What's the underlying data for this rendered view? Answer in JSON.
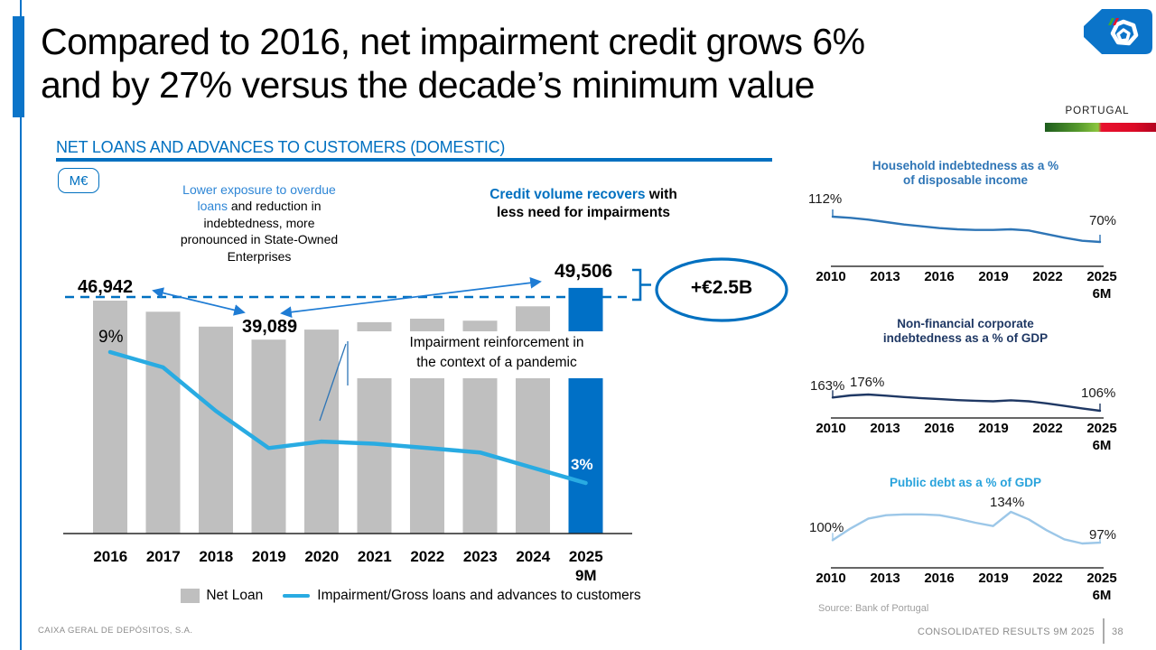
{
  "slide": {
    "title_line1": "Compared to 2016, net impairment credit grows 6%",
    "title_line2": "and by 27% versus the decade’s minimum value",
    "portugal_label": "PORTUGAL",
    "footer_left": "CAIXA GERAL DE DEPÓSITOS, S.A.",
    "footer_right": "CONSOLIDATED RESULTS 9M 2025",
    "page_number": "38",
    "source_note": "Source: Bank of Portugal"
  },
  "main_chart": {
    "header": "NET LOANS AND ADVANCES TO CUSTOMERS (DOMESTIC)",
    "unit_badge": "M€",
    "callout_left_highlight": "Lower exposure to overdue loans",
    "callout_left_rest": " and reduction in indebtedness, more pronounced in State-Owned Enterprises",
    "callout_right_highlight": "Credit volume recovers",
    "callout_right_rest": " with less need for impairments",
    "pandemic_line1": "Impairment reinforcement in",
    "pandemic_line2": "the context of a pandemic",
    "delta_badge": "+€2.5B",
    "value_2016": "46,942",
    "value_2019": "39,089",
    "value_2025": "49,506",
    "line_start": "9%",
    "line_end": "3%",
    "legend_bar": "Net Loan",
    "legend_line": "Impairment/Gross loans and advances to customers"
  },
  "right_panel": {
    "t1_line1": "Household indebtedness as a %",
    "t1_line2": "of disposable income",
    "t2_line1": "Non-financial corporate",
    "t2_line2": "indebtedness as a % of GDP",
    "t3_line1": "Public debt as a % of GDP"
  },
  "mini_labels": {
    "c1_start": "112%",
    "c1_end": "70%",
    "c2_start": "163%",
    "c2_peak": "176%",
    "c2_end": "106%",
    "c3_start": "100%",
    "c3_peak": "134%",
    "c3_end": "97%"
  },
  "axis": {
    "mini_years": [
      "2010",
      "2013",
      "2016",
      "2019",
      "2022",
      "2025"
    ],
    "mini_sub": "6M"
  },
  "chart_data": [
    {
      "id": "net_loans_domestic",
      "type": "bar",
      "title": "NET LOANS AND ADVANCES TO CUSTOMERS (DOMESTIC)",
      "unit": "M€",
      "categories": [
        "2016",
        "2017",
        "2018",
        "2019",
        "2020",
        "2021",
        "2022",
        "2023",
        "2024",
        "2025"
      ],
      "last_category_sub": "9M",
      "ylim": [
        0,
        50000
      ],
      "series": [
        {
          "name": "Net Loan",
          "type": "bar",
          "values": [
            46942,
            44700,
            41700,
            39089,
            41100,
            42600,
            43300,
            42900,
            45800,
            49506
          ],
          "labeled_values": {
            "2016": "46,942",
            "2019": "39,089",
            "2025 9M": "49,506"
          }
        },
        {
          "name": "Impairment/Gross loans and advances to customers",
          "type": "line",
          "unit": "%",
          "values": [
            9.0,
            8.3,
            6.3,
            4.6,
            4.9,
            4.8,
            4.6,
            4.4,
            3.7,
            3.0
          ],
          "labeled_values": {
            "2016": "9%",
            "2025 9M": "3%"
          }
        }
      ],
      "annotations": [
        "+€2.5B vs 2016",
        "Lower exposure to overdue loans and reduction in indebtedness, more pronounced in State-Owned Enterprises",
        "Credit volume recovers with less need for impairments",
        "Impairment reinforcement in the context of a pandemic"
      ]
    },
    {
      "id": "household_indebtedness",
      "type": "line",
      "title": "Household indebtedness as a % of disposable income",
      "x": [
        2010,
        2011,
        2012,
        2013,
        2014,
        2015,
        2016,
        2017,
        2018,
        2019,
        2020,
        2021,
        2022,
        2023,
        2024,
        2025
      ],
      "values": [
        112,
        110,
        107,
        103,
        99,
        96,
        93,
        91,
        90,
        90,
        91,
        89,
        83,
        77,
        72,
        70
      ],
      "labeled_values": {
        "2010": "112%",
        "2025 6M": "70%"
      },
      "xticks": [
        "2010",
        "2013",
        "2016",
        "2019",
        "2022",
        "2025 6M"
      ]
    },
    {
      "id": "nfc_indebtedness",
      "type": "line",
      "title": "Non-financial corporate indebtedness as a % of GDP",
      "x": [
        2010,
        2011,
        2012,
        2013,
        2014,
        2015,
        2016,
        2017,
        2018,
        2019,
        2020,
        2021,
        2022,
        2023,
        2024,
        2025
      ],
      "values": [
        163,
        172,
        176,
        171,
        165,
        160,
        156,
        152,
        149,
        147,
        151,
        147,
        138,
        127,
        116,
        106
      ],
      "labeled_values": {
        "2010": "163%",
        "2012": "176%",
        "2025 6M": "106%"
      },
      "xticks": [
        "2010",
        "2013",
        "2016",
        "2019",
        "2022",
        "2025 6M"
      ]
    },
    {
      "id": "public_debt",
      "type": "line",
      "title": "Public debt as a % of GDP",
      "x": [
        2010,
        2011,
        2012,
        2013,
        2014,
        2015,
        2016,
        2017,
        2018,
        2019,
        2020,
        2021,
        2022,
        2023,
        2024,
        2025
      ],
      "values": [
        100,
        114,
        126,
        130,
        131,
        131,
        130,
        126,
        121,
        117,
        134,
        125,
        112,
        101,
        96,
        97
      ],
      "labeled_values": {
        "2010": "100%",
        "2020": "134%",
        "2025 6M": "97%"
      },
      "xticks": [
        "2010",
        "2013",
        "2016",
        "2019",
        "2022",
        "2025 6M"
      ]
    }
  ],
  "colors": {
    "accent": "#0b74c9",
    "bar_highlight": "#0070C6",
    "bar_gray": "#BFBFBF",
    "dash_blue": "#0070C0",
    "impairment_line": "#29ABE2",
    "arrow_blue": "#1F7CD4",
    "mini_lines": [
      "#2E75B6",
      "#1F3864",
      "#9CC7E8"
    ],
    "flag_green": "#3AAA35",
    "flag_red": "#E8112D"
  }
}
